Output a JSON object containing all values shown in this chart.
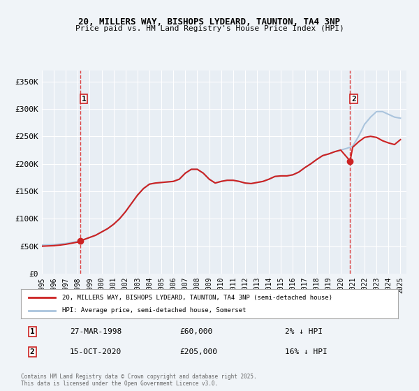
{
  "title": "20, MILLERS WAY, BISHOPS LYDEARD, TAUNTON, TA4 3NP",
  "subtitle": "Price paid vs. HM Land Registry's House Price Index (HPI)",
  "bg_color": "#f0f4f8",
  "plot_bg_color": "#e8eef4",
  "grid_color": "white",
  "sale1_date": 1998.23,
  "sale1_price": 60000,
  "sale1_label": "1",
  "sale2_date": 2020.79,
  "sale2_price": 205000,
  "sale2_label": "2",
  "legend_entry1": "20, MILLERS WAY, BISHOPS LYDEARD, TAUNTON, TA4 3NP (semi-detached house)",
  "legend_entry2": "HPI: Average price, semi-detached house, Somerset",
  "annotation1_date": "27-MAR-1998",
  "annotation1_price": "£60,000",
  "annotation1_hpi": "2% ↓ HPI",
  "annotation2_date": "15-OCT-2020",
  "annotation2_price": "£205,000",
  "annotation2_hpi": "16% ↓ HPI",
  "footer": "Contains HM Land Registry data © Crown copyright and database right 2025.\nThis data is licensed under the Open Government Licence v3.0.",
  "ylim": [
    0,
    370000
  ],
  "xlim": [
    1995,
    2025.5
  ],
  "yticks": [
    0,
    50000,
    100000,
    150000,
    200000,
    250000,
    300000,
    350000
  ],
  "ytick_labels": [
    "£0",
    "£50K",
    "£100K",
    "£150K",
    "£200K",
    "£250K",
    "£300K",
    "£350K"
  ],
  "hpi_color": "#aac4dd",
  "price_color": "#cc2222",
  "dashed_color": "#dd4444"
}
